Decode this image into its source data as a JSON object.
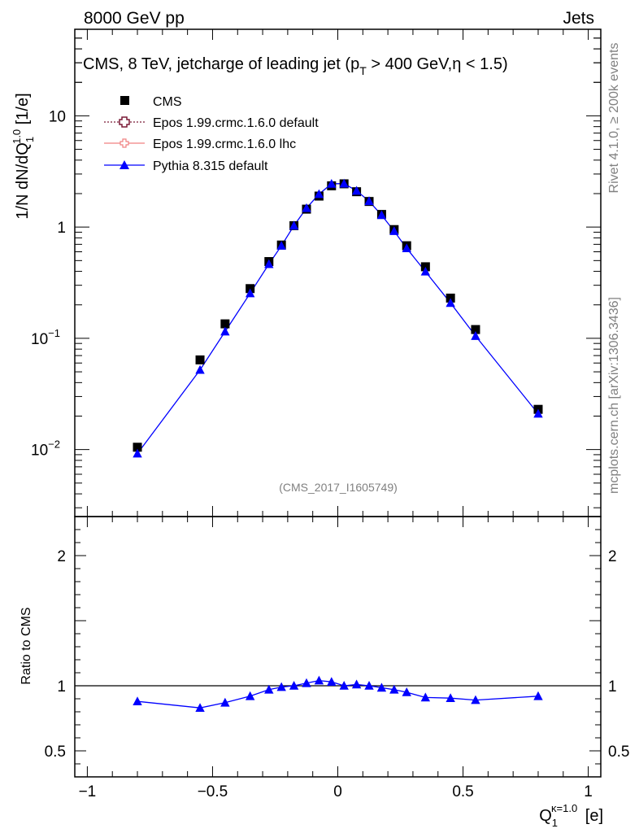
{
  "header": {
    "left": "8000 GeV pp",
    "right": "Jets"
  },
  "side_labels": {
    "rivet": "Rivet 4.1.0, ≥ 200k events",
    "mcplots": "mcplots.cern.ch [arXiv:1306.3436]"
  },
  "watermark": "(CMS_2017_I1605749)",
  "chart_data": {
    "type": "scatter",
    "title_parts": [
      "CMS, 8 TeV, jetcharge of leading jet (p",
      "T",
      " > 400 GeV,η < 1.5)"
    ],
    "ylabel_parts": [
      "1/N dN/dQ",
      "1",
      "1.0",
      " [1/e]"
    ],
    "xlabel_parts": [
      "Q",
      "1",
      "κ=1.0",
      " [e]"
    ],
    "ratio_ylabel": "Ratio to CMS",
    "xlim": [
      -1.05,
      1.05
    ],
    "ylim": [
      0.0025,
      60
    ],
    "yscale": "log",
    "ratio_ylim": [
      0.3,
      2.3
    ],
    "x_ticks": [
      -1,
      -0.5,
      0,
      0.5,
      1
    ],
    "x_tick_labels": [
      "−1",
      "−0.5",
      "0",
      "0.5",
      "1"
    ],
    "y_ticks": [
      {
        "value": 10,
        "base": "10",
        "exp": ""
      },
      {
        "value": 1,
        "base": "1",
        "exp": ""
      },
      {
        "value": 0.1,
        "base": "10",
        "exp": "−1"
      },
      {
        "value": 0.01,
        "base": "10",
        "exp": "−2"
      }
    ],
    "ratio_ticks": [
      {
        "value": 2,
        "label": "2"
      },
      {
        "value": 1,
        "label": "1"
      },
      {
        "value": 0.5,
        "label": "0.5"
      }
    ],
    "legend": [
      {
        "name": "CMS",
        "style": "square"
      },
      {
        "name": "Epos 1.99.crmc.1.6.0 default",
        "style": "open-cross"
      },
      {
        "name": "Epos 1.99.crmc.1.6.0 lhc",
        "style": "light-cross"
      },
      {
        "name": "Pythia 8.315 default",
        "style": "triangle"
      }
    ],
    "colors": {
      "cms": "#000000",
      "epos_default": "#7a1a36",
      "epos_lhc": "#f08080",
      "pythia": "#0000ff"
    },
    "x": [
      -0.8,
      -0.55,
      -0.45,
      -0.35,
      -0.275,
      -0.225,
      -0.175,
      -0.125,
      -0.075,
      -0.025,
      0.025,
      0.075,
      0.125,
      0.175,
      0.225,
      0.275,
      0.35,
      0.45,
      0.55,
      0.8
    ],
    "series": [
      {
        "name": "CMS",
        "values": [
          0.0105,
          0.064,
          0.135,
          0.28,
          0.49,
          0.69,
          1.03,
          1.45,
          1.9,
          2.35,
          2.45,
          2.08,
          1.7,
          1.3,
          0.95,
          0.68,
          0.44,
          0.23,
          0.12,
          0.023
        ]
      },
      {
        "name": "Pythia 8.315 default",
        "values": [
          0.0092,
          0.052,
          0.115,
          0.254,
          0.465,
          0.68,
          1.03,
          1.48,
          1.98,
          2.45,
          2.46,
          2.12,
          1.71,
          1.28,
          0.92,
          0.645,
          0.398,
          0.208,
          0.105,
          0.021
        ]
      }
    ],
    "ratio": [
      {
        "name": "Pythia 8.315 default",
        "values": [
          0.88,
          0.83,
          0.87,
          0.92,
          0.97,
          0.99,
          1.0,
          1.02,
          1.04,
          1.03,
          1.0,
          1.01,
          1.0,
          0.985,
          0.97,
          0.95,
          0.91,
          0.905,
          0.89,
          0.92
        ]
      }
    ]
  }
}
